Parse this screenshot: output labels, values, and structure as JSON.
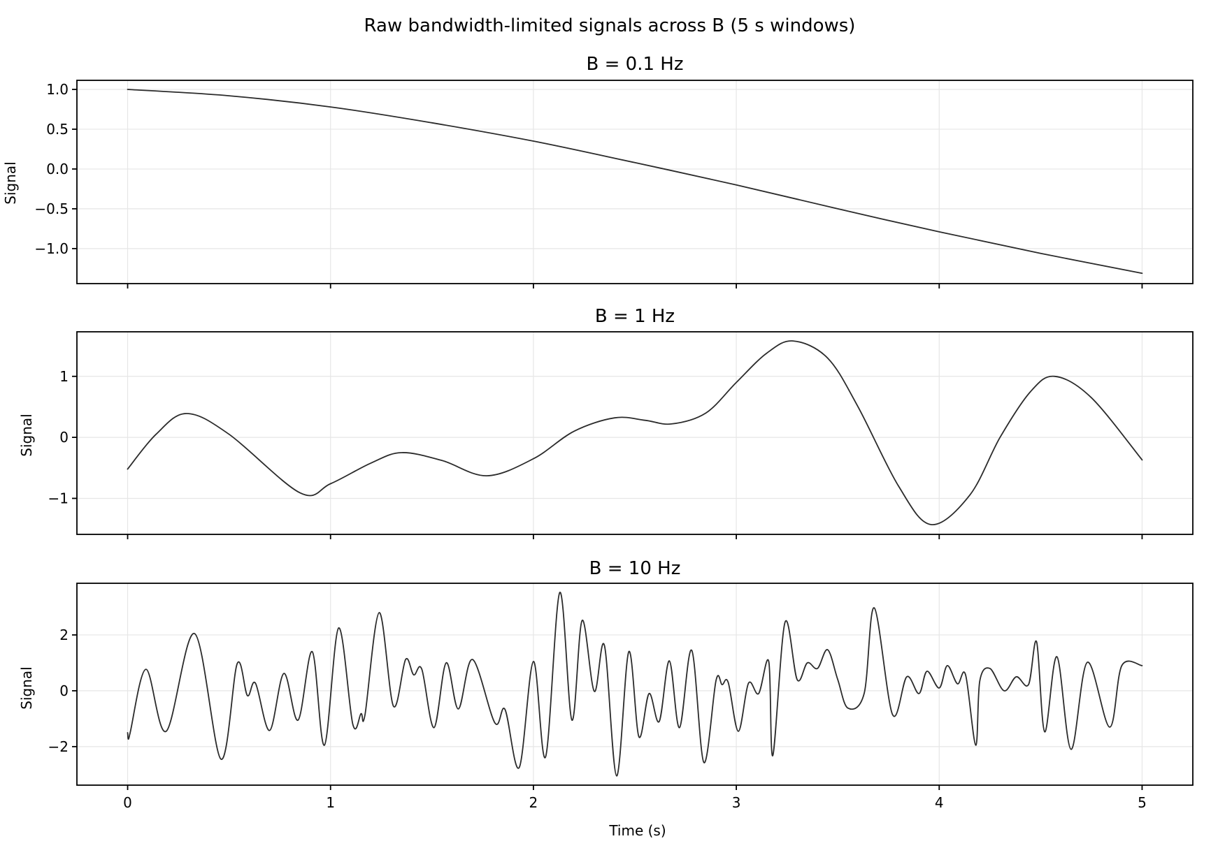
{
  "figure": {
    "suptitle": "Raw bandwidth-limited signals across B (5 s windows)",
    "line_color": "#2b2b2b",
    "grid_color": "#e6e6e6"
  },
  "chart_data": [
    {
      "type": "line",
      "title": "B = 0.1 Hz",
      "xlabel": "",
      "ylabel": "Signal",
      "xlim": [
        -0.25,
        5.25
      ],
      "ylim": [
        -1.44,
        1.114
      ],
      "xticks": [
        0,
        1,
        2,
        3,
        4,
        5
      ],
      "xtick_labels_visible": false,
      "yticks": [
        1.0,
        0.5,
        0.0,
        -0.5,
        -1.0
      ],
      "ytick_labels": [
        "1.0",
        "0.5",
        "0.0",
        "−0.5",
        "−1.0"
      ],
      "grid": true,
      "series": [
        {
          "name": "B = 0.1 Hz",
          "x": [
            0,
            0.5,
            1,
            1.5,
            2,
            2.5,
            3,
            3.5,
            4,
            4.5,
            5
          ],
          "y": [
            1.0,
            0.92,
            0.78,
            0.58,
            0.35,
            0.08,
            -0.2,
            -0.5,
            -0.79,
            -1.06,
            -1.31
          ]
        }
      ]
    },
    {
      "type": "line",
      "title": "B = 1 Hz",
      "xlabel": "",
      "ylabel": "Signal",
      "xlim": [
        -0.25,
        5.25
      ],
      "ylim": [
        -1.59,
        1.73
      ],
      "xticks": [
        0,
        1,
        2,
        3,
        4,
        5
      ],
      "xtick_labels_visible": false,
      "yticks": [
        1,
        0,
        -1
      ],
      "ytick_labels": [
        "1",
        "0",
        "−1"
      ],
      "grid": true,
      "series": [
        {
          "name": "B = 1 Hz",
          "x": [
            0,
            0.14,
            0.29,
            0.5,
            0.85,
            1.0,
            1.2,
            1.35,
            1.55,
            1.77,
            2.0,
            2.2,
            2.4,
            2.55,
            2.68,
            2.85,
            3.0,
            3.15,
            3.28,
            3.45,
            3.6,
            3.8,
            3.96,
            4.15,
            4.3,
            4.45,
            4.57,
            4.75,
            5.0
          ],
          "y": [
            -0.52,
            0.05,
            0.39,
            0.05,
            -0.91,
            -0.76,
            -0.42,
            -0.25,
            -0.38,
            -0.63,
            -0.35,
            0.1,
            0.32,
            0.28,
            0.22,
            0.4,
            0.9,
            1.38,
            1.58,
            1.3,
            0.5,
            -0.8,
            -1.43,
            -0.95,
            0.0,
            0.75,
            1.0,
            0.65,
            -0.37
          ]
        }
      ]
    },
    {
      "type": "line",
      "title": "B = 10 Hz",
      "xlabel": "Time (s)",
      "ylabel": "Signal",
      "xlim": [
        -0.25,
        5.25
      ],
      "ylim": [
        -3.38,
        3.85
      ],
      "xticks": [
        0,
        1,
        2,
        3,
        4,
        5
      ],
      "xtick_labels": [
        "0",
        "1",
        "2",
        "3",
        "4",
        "5"
      ],
      "xtick_labels_visible": true,
      "yticks": [
        2,
        0,
        -2
      ],
      "ytick_labels": [
        "2",
        "0",
        "−2"
      ],
      "grid": true,
      "series": [
        {
          "name": "B = 10 Hz",
          "x": [
            0.0,
            0.01,
            0.09,
            0.19,
            0.33,
            0.46,
            0.54,
            0.59,
            0.63,
            0.7,
            0.77,
            0.84,
            0.91,
            0.97,
            1.04,
            1.11,
            1.15,
            1.17,
            1.24,
            1.31,
            1.37,
            1.41,
            1.45,
            1.51,
            1.57,
            1.63,
            1.7,
            1.81,
            1.86,
            1.93,
            2.0,
            2.06,
            2.13,
            2.19,
            2.24,
            2.3,
            2.35,
            2.41,
            2.47,
            2.52,
            2.57,
            2.62,
            2.67,
            2.72,
            2.78,
            2.84,
            2.9,
            2.93,
            2.96,
            3.01,
            3.06,
            3.11,
            3.16,
            3.18,
            3.24,
            3.3,
            3.35,
            3.4,
            3.45,
            3.5,
            3.55,
            3.63,
            3.68,
            3.77,
            3.84,
            3.9,
            3.94,
            4.0,
            4.04,
            4.09,
            4.13,
            4.18,
            4.2,
            4.25,
            4.32,
            4.38,
            4.44,
            4.48,
            4.52,
            4.58,
            4.65,
            4.73,
            4.84,
            4.9,
            5.0
          ],
          "y": [
            -1.5,
            -1.58,
            0.77,
            -1.45,
            2.05,
            -2.45,
            0.97,
            -0.17,
            0.27,
            -1.42,
            0.62,
            -1.05,
            1.4,
            -1.95,
            2.25,
            -1.2,
            -0.82,
            -0.85,
            2.8,
            -0.55,
            1.12,
            0.57,
            0.77,
            -1.32,
            1.0,
            -0.65,
            1.12,
            -1.15,
            -0.67,
            -2.75,
            1.05,
            -2.37,
            3.52,
            -1.05,
            2.52,
            -0.02,
            1.62,
            -3.05,
            1.4,
            -1.65,
            -0.1,
            -1.1,
            1.07,
            -1.32,
            1.45,
            -2.57,
            0.37,
            0.22,
            0.3,
            -1.45,
            0.27,
            -0.1,
            1.05,
            -2.32,
            2.45,
            0.4,
            1.0,
            0.8,
            1.47,
            0.4,
            -0.62,
            -0.1,
            2.97,
            -0.85,
            0.5,
            -0.1,
            0.7,
            0.1,
            0.9,
            0.25,
            0.57,
            -1.95,
            0.35,
            0.8,
            0.0,
            0.5,
            0.22,
            1.75,
            -1.47,
            1.22,
            -2.1,
            1.02,
            -1.3,
            0.9,
            0.9
          ]
        }
      ]
    }
  ]
}
